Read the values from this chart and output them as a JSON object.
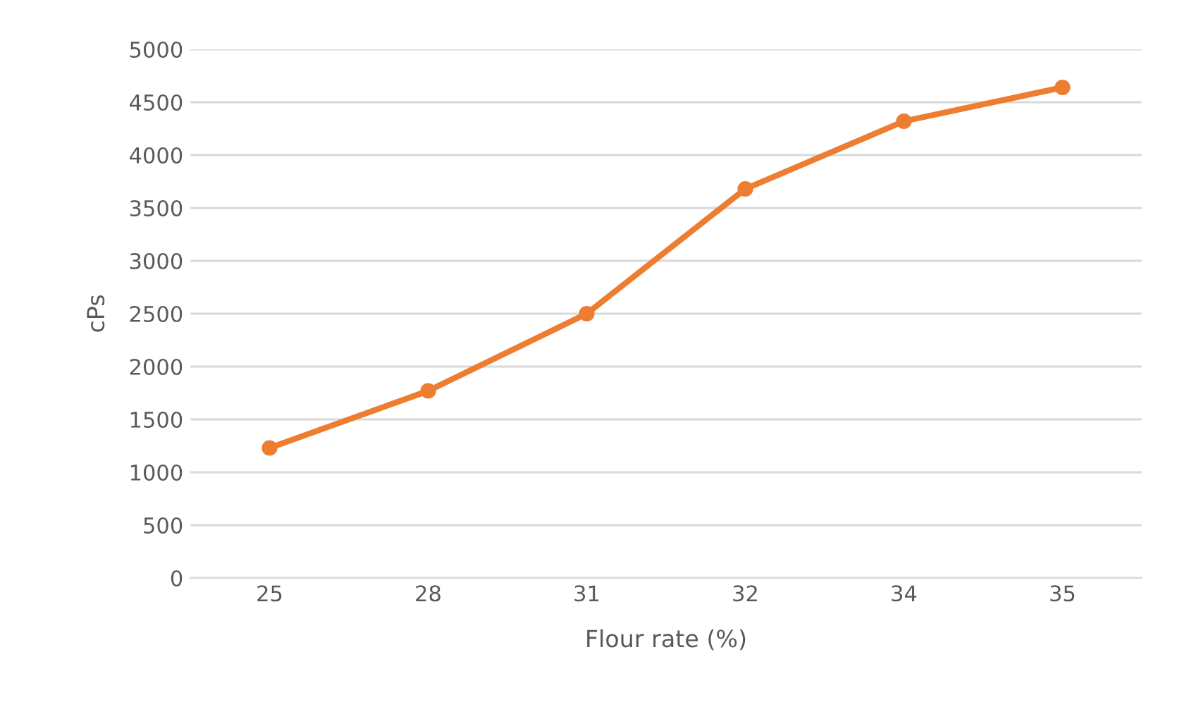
{
  "chart_data": {
    "type": "line",
    "xlabel": "Flour rate (%)",
    "ylabel": "cPs",
    "categories": [
      "25",
      "28",
      "31",
      "32",
      "34",
      "35"
    ],
    "series": [
      {
        "color": "#ed7d31",
        "values": [
          1230,
          1770,
          2500,
          3680,
          4320,
          4640
        ]
      }
    ],
    "ylim": [
      0,
      5000
    ],
    "yticks": [
      0,
      500,
      1000,
      1500,
      2000,
      2500,
      3000,
      3500,
      4000,
      4500,
      5000
    ],
    "grid": "y",
    "marker": "circle",
    "line_style": "solid"
  }
}
